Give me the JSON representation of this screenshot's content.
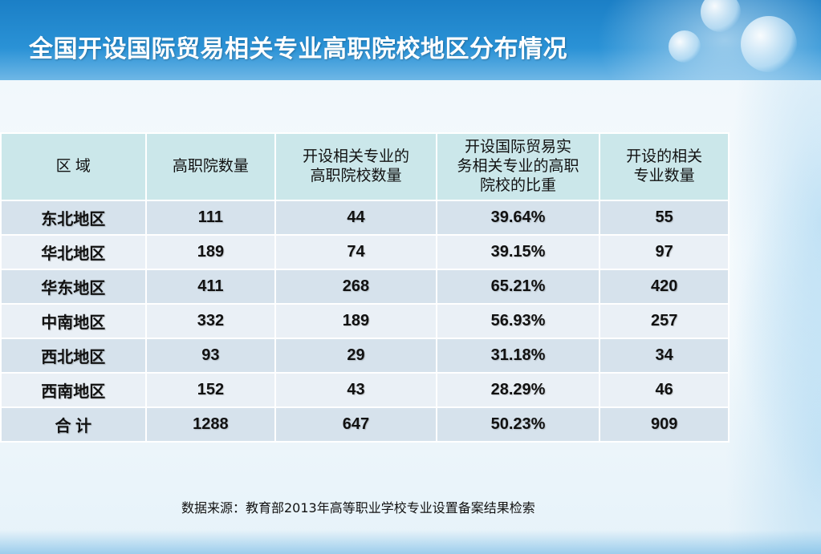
{
  "title": "全国开设国际贸易相关专业高职院校地区分布情况",
  "table": {
    "headers": [
      "区  域",
      "高职院数量",
      "开设相关专业的\n高职院校数量",
      "开设国际贸易实\n务相关专业的高职\n院校的比重",
      "开设的相关\n专业数量"
    ],
    "rows": [
      [
        "东北地区",
        "111",
        "44",
        "39.64%",
        "55"
      ],
      [
        "华北地区",
        "189",
        "74",
        "39.15%",
        "97"
      ],
      [
        "华东地区",
        "411",
        "268",
        "65.21%",
        "420"
      ],
      [
        "中南地区",
        "332",
        "189",
        "56.93%",
        "257"
      ],
      [
        "西北地区",
        "93",
        "29",
        "31.18%",
        "34"
      ],
      [
        "西南地区",
        "152",
        "43",
        "28.29%",
        "46"
      ],
      [
        "合  计",
        "1288",
        "647",
        "50.23%",
        "909"
      ]
    ]
  },
  "source": "数据来源：教育部2013年高等职业学校专业设置备案结果检索",
  "colors": {
    "banner": "#1b7fc6",
    "header_fill": "#cbe7ea",
    "row_odd": "#d6e2ec",
    "row_even": "#eaf0f6"
  }
}
